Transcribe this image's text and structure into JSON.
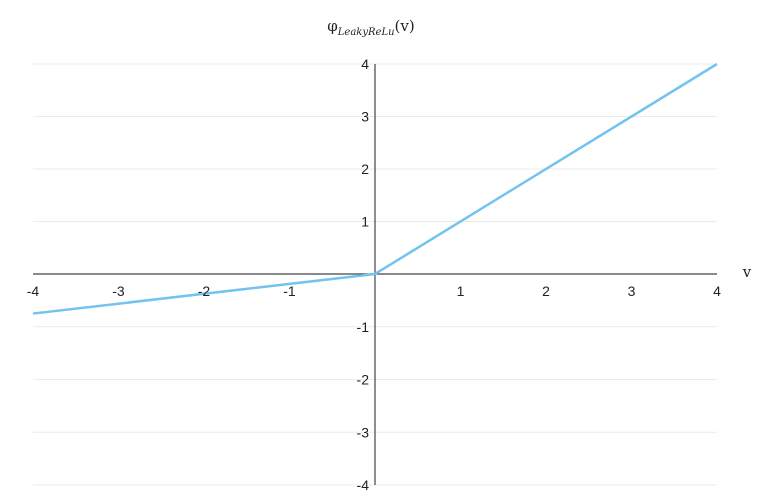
{
  "chart_data": {
    "type": "line",
    "title_parts": {
      "main": "φ",
      "subscript": "LeakyReLu",
      "suffix": "(v)"
    },
    "xlabel": "v",
    "xlim": [
      -4,
      4
    ],
    "ylim": [
      -4,
      4
    ],
    "x_ticks": [
      -4,
      -3,
      -2,
      -1,
      1,
      2,
      3,
      4
    ],
    "y_ticks": [
      4,
      3,
      2,
      1,
      -1,
      -2,
      -3,
      -4
    ],
    "grid": true,
    "series": [
      {
        "color": "#72C3EE",
        "x": [
          -4,
          0,
          4
        ],
        "y": [
          -0.75,
          0,
          4
        ]
      }
    ],
    "colors": {
      "grid": "#ebebeb",
      "axis": "#444444",
      "text": "#222222"
    }
  }
}
